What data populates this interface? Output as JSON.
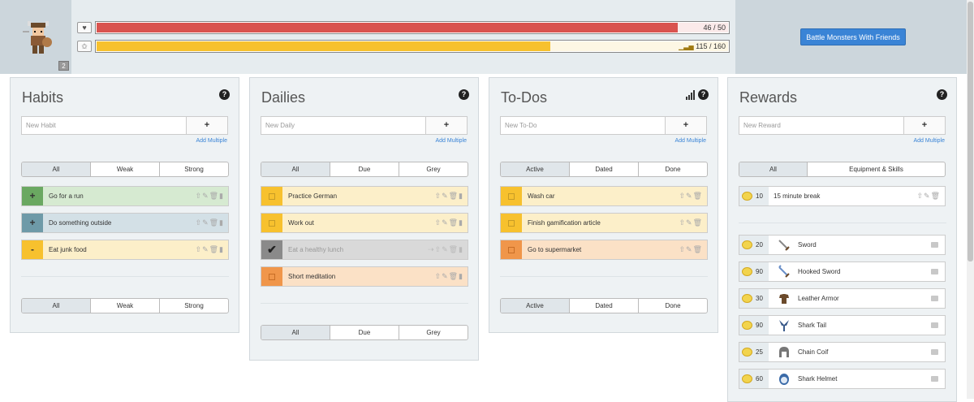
{
  "header": {
    "level": "2",
    "health": {
      "icon": "heart-icon",
      "value": 46,
      "max": 50,
      "text": "46 / 50",
      "color": "#d9534f"
    },
    "experience": {
      "icon": "star-icon",
      "value": 115,
      "max": 160,
      "text": "115 / 160",
      "color": "#f7c12e"
    },
    "party_button": "Battle Monsters With Friends"
  },
  "habits": {
    "title": "Habits",
    "placeholder": "New Habit",
    "add_label": "+",
    "add_multiple": "Add Multiple",
    "filters": [
      "All",
      "Weak",
      "Strong"
    ],
    "items": [
      {
        "control": "+",
        "text": "Go for a run"
      },
      {
        "control": "+",
        "text": "Do something outside"
      },
      {
        "control": "-",
        "text": "Eat junk food"
      }
    ]
  },
  "dailies": {
    "title": "Dailies",
    "placeholder": "New Daily",
    "add_label": "+",
    "add_multiple": "Add Multiple",
    "filters": [
      "All",
      "Due",
      "Grey"
    ],
    "items": [
      {
        "text": "Practice German"
      },
      {
        "text": "Work out"
      },
      {
        "text": "Eat a healthy lunch"
      },
      {
        "text": "Short meditation"
      }
    ]
  },
  "todos": {
    "title": "To-Dos",
    "placeholder": "New To-Do",
    "add_label": "+",
    "add_multiple": "Add Multiple",
    "filters": [
      "Active",
      "Dated",
      "Done"
    ],
    "items": [
      {
        "text": "Wash car"
      },
      {
        "text": "Finish gamification article"
      },
      {
        "text": "Go to supermarket"
      }
    ]
  },
  "rewards": {
    "title": "Rewards",
    "placeholder": "New Reward",
    "add_label": "+",
    "add_multiple": "Add Multiple",
    "filters": [
      "All",
      "Equipment & Skills"
    ],
    "custom": [
      {
        "cost": "10",
        "text": "15 minute break"
      }
    ],
    "items": [
      {
        "cost": "20",
        "text": "Sword",
        "icon": "sword-icon"
      },
      {
        "cost": "90",
        "text": "Hooked Sword",
        "icon": "hooked-sword-icon"
      },
      {
        "cost": "30",
        "text": "Leather Armor",
        "icon": "leather-armor-icon"
      },
      {
        "cost": "90",
        "text": "Shark Tail",
        "icon": "shark-tail-icon"
      },
      {
        "cost": "25",
        "text": "Chain Coif",
        "icon": "chain-coif-icon"
      },
      {
        "cost": "60",
        "text": "Shark Helmet",
        "icon": "shark-helmet-icon"
      }
    ]
  }
}
